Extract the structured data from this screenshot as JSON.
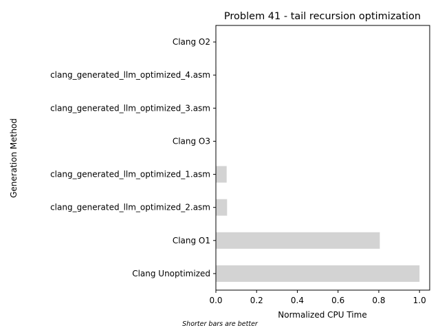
{
  "chart_data": {
    "type": "bar",
    "orientation": "horizontal",
    "title": "Problem 41 - tail recursion optimization",
    "xlabel": "Normalized CPU Time",
    "ylabel": "Generation Method",
    "categories": [
      "Clang O2",
      "clang_generated_llm_optimized_4.asm",
      "clang_generated_llm_optimized_3.asm",
      "Clang O3",
      "clang_generated_llm_optimized_1.asm",
      "clang_generated_llm_optimized_2.asm",
      "Clang O1",
      "Clang Unoptimized"
    ],
    "values": [
      0.002,
      0.002,
      0.002,
      0.002,
      0.053,
      0.055,
      0.805,
      1.0
    ],
    "xlim": [
      0,
      1.05
    ],
    "xticks": [
      "0.0",
      "0.2",
      "0.4",
      "0.6",
      "0.8",
      "1.0"
    ],
    "grid": false,
    "bar_color": "#d3d3d3",
    "note": "Shorter bars are better"
  }
}
